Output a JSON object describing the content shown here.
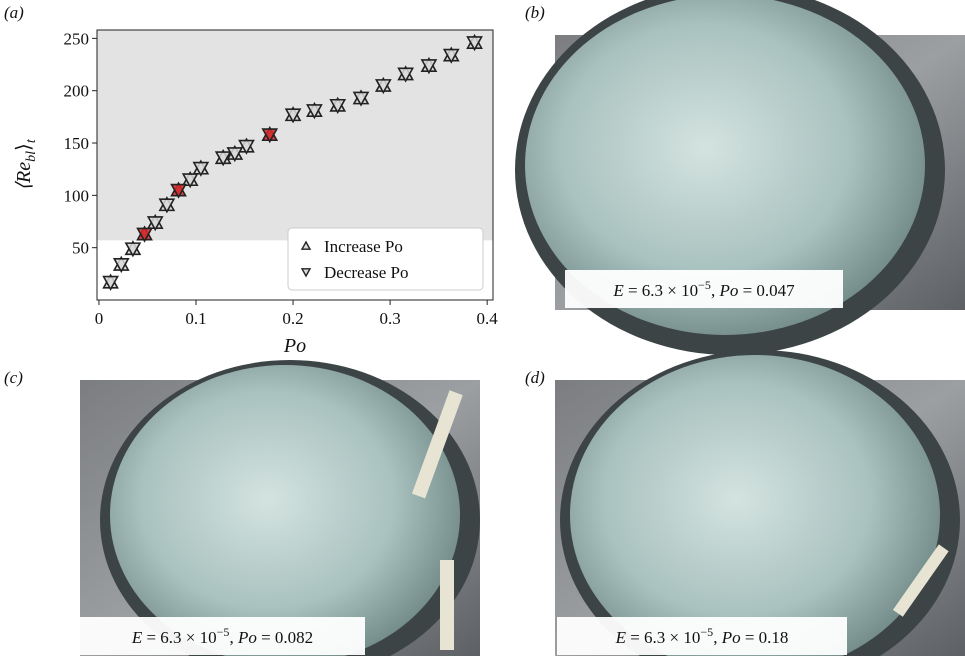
{
  "chart_data": {
    "type": "scatter",
    "panel_label": "(a)",
    "xlabel": "Po",
    "ylabel": {
      "open": "⟨Re",
      "sub": "bl",
      "close": "⟩",
      "sub2": "t"
    },
    "x": [
      0.012,
      0.023,
      0.035,
      0.047,
      0.058,
      0.07,
      0.082,
      0.094,
      0.105,
      0.128,
      0.14,
      0.152,
      0.176,
      0.2,
      0.222,
      0.246,
      0.27,
      0.293,
      0.316,
      0.34,
      0.363,
      0.387
    ],
    "series": [
      {
        "name": "Increase Po",
        "marker": "up",
        "color": "#d9d9d9",
        "values": [
          17,
          34,
          49,
          63,
          74,
          91,
          105,
          115,
          126,
          136,
          140,
          147,
          158,
          177,
          181,
          186,
          193,
          205,
          216,
          224,
          234,
          246
        ]
      },
      {
        "name": "Decrease Po",
        "marker": "down",
        "color": "#d9d9d9",
        "values": [
          17,
          34,
          49,
          63,
          74,
          91,
          105,
          115,
          126,
          136,
          140,
          147,
          158,
          177,
          181,
          186,
          193,
          205,
          216,
          224,
          234,
          246
        ]
      }
    ],
    "highlight_color": "#d42a2a",
    "highlight_x": [
      0.047,
      0.082,
      0.176
    ],
    "shaded_band": {
      "ylim": [
        57,
        258
      ],
      "color": "#e3e3e3"
    },
    "xlim": [
      -0.002,
      0.406
    ],
    "ylim": [
      0,
      258
    ],
    "xticks": [
      {
        "value": 0,
        "label": "0"
      },
      0.1,
      0.2,
      0.3,
      0.4
    ],
    "yticks": [
      50,
      100,
      150,
      200,
      250
    ],
    "legend": "lower right"
  },
  "photos": [
    {
      "label": "(b)",
      "caption": {
        "e": "E",
        "mantissa": " = 6.3 × 10",
        "exponent": "−5",
        "sep": ", ",
        "po": "Po",
        "value": " = 0.047"
      }
    },
    {
      "label": "(c)",
      "caption": {
        "e": "E",
        "mantissa": " = 6.3 × 10",
        "exponent": "−5",
        "sep": ", ",
        "po": "Po",
        "value": " = 0.082"
      }
    },
    {
      "label": "(d)",
      "caption": {
        "e": "E",
        "mantissa": " = 6.3 × 10",
        "exponent": "−5",
        "sep": ", ",
        "po": "Po",
        "value": " = 0.18"
      }
    }
  ]
}
